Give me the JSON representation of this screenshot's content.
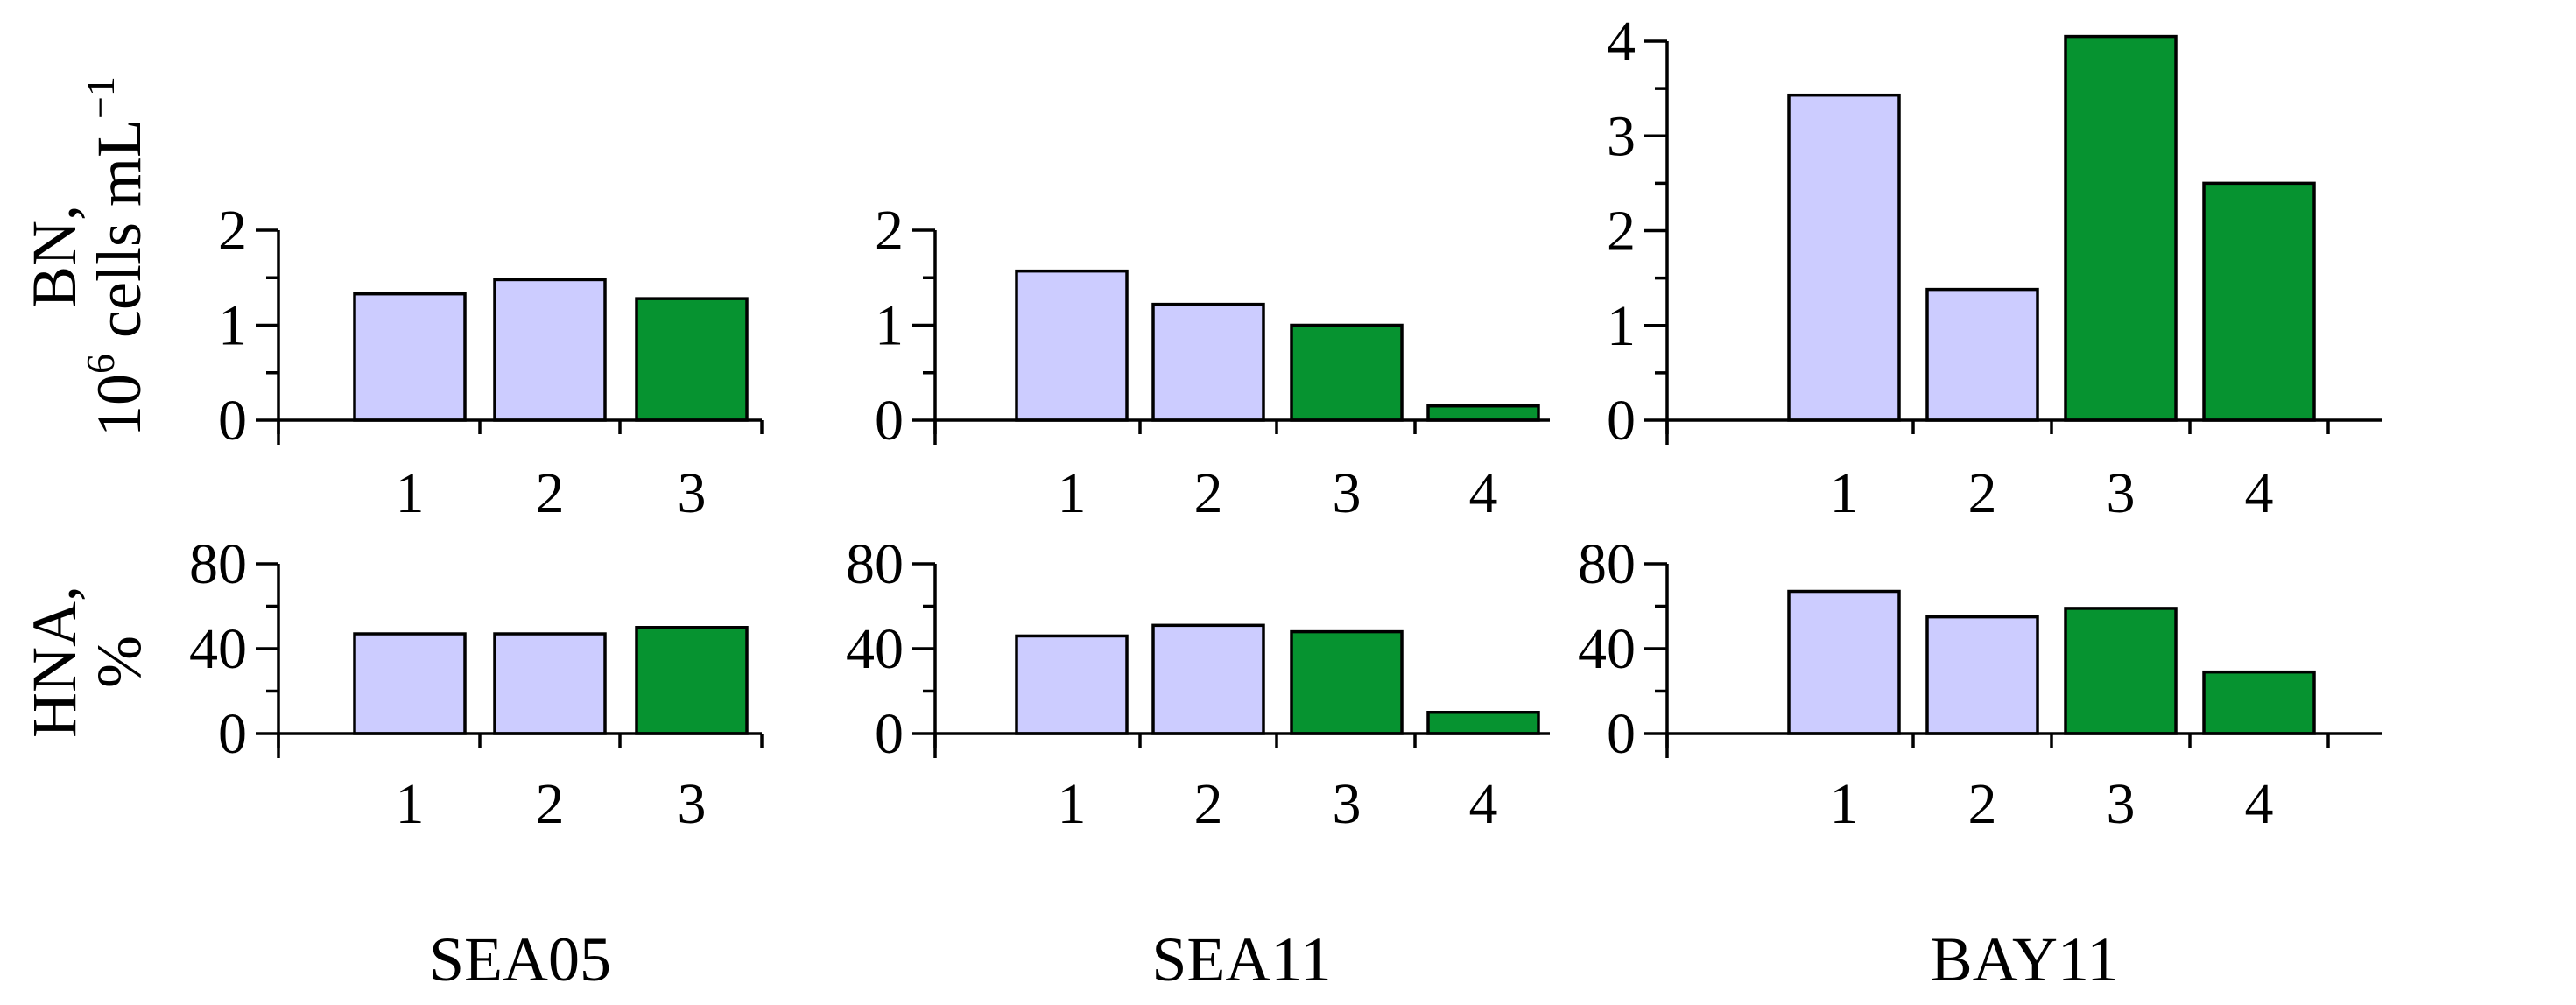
{
  "colors": {
    "light": "#ccccff",
    "green": "#069330"
  },
  "rows": [
    {
      "y_title_lines": [
        "BN,",
        "10",
        "6",
        " cells mL",
        "−1"
      ]
    },
    {
      "y_title_lines": [
        "HNA,",
        "%"
      ]
    }
  ],
  "chart_data": [
    {
      "type": "bar",
      "group": "SEA05",
      "row": "BN",
      "categories": [
        "1",
        "2",
        "3"
      ],
      "values": [
        1.33,
        1.48,
        1.28
      ],
      "fills": [
        "light",
        "light",
        "green"
      ],
      "ylim": [
        0,
        2
      ],
      "yticks": [
        "0",
        "1",
        "2"
      ]
    },
    {
      "type": "bar",
      "group": "SEA11",
      "row": "BN",
      "categories": [
        "1",
        "2",
        "3",
        "4"
      ],
      "values": [
        1.57,
        1.22,
        1.0,
        0.15
      ],
      "fills": [
        "light",
        "light",
        "green",
        "green"
      ],
      "ylim": [
        0,
        2
      ],
      "yticks": [
        "0",
        "1",
        "2"
      ]
    },
    {
      "type": "bar",
      "group": "BAY11",
      "row": "BN",
      "categories": [
        "1",
        "2",
        "3",
        "4"
      ],
      "values": [
        3.43,
        1.38,
        4.05,
        2.5
      ],
      "fills": [
        "light",
        "light",
        "green",
        "green"
      ],
      "ylim": [
        0,
        4
      ],
      "yticks": [
        "0",
        "1",
        "2",
        "3",
        "4"
      ]
    },
    {
      "type": "bar",
      "group": "SEA05",
      "row": "HNA",
      "categories": [
        "1",
        "2",
        "3"
      ],
      "values": [
        47,
        47,
        50
      ],
      "fills": [
        "light",
        "light",
        "green"
      ],
      "ylim": [
        0,
        80
      ],
      "yticks": [
        "0",
        "40",
        "80"
      ]
    },
    {
      "type": "bar",
      "group": "SEA11",
      "row": "HNA",
      "categories": [
        "1",
        "2",
        "3",
        "4"
      ],
      "values": [
        46,
        51,
        48,
        10
      ],
      "fills": [
        "light",
        "light",
        "green",
        "green"
      ],
      "ylim": [
        0,
        80
      ],
      "yticks": [
        "0",
        "40",
        "80"
      ]
    },
    {
      "type": "bar",
      "group": "BAY11",
      "row": "HNA",
      "categories": [
        "1",
        "2",
        "3",
        "4"
      ],
      "values": [
        67,
        55,
        59,
        29
      ],
      "fills": [
        "light",
        "light",
        "green",
        "green"
      ],
      "ylim": [
        0,
        80
      ],
      "yticks": [
        "0",
        "40",
        "80"
      ]
    }
  ],
  "groups": [
    "SEA05",
    "SEA11",
    "BAY11"
  ]
}
